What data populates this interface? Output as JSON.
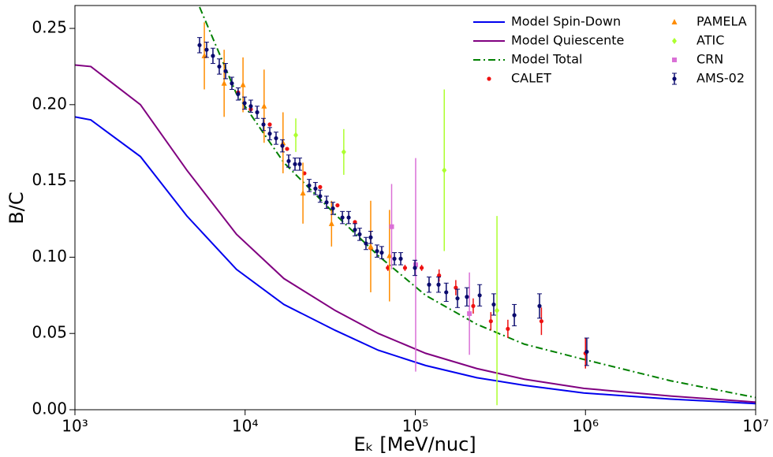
{
  "chart_data": {
    "type": "line",
    "xlabel": "Eₖ [MeV/nuc]",
    "ylabel": "B/C",
    "xscale": "log",
    "xlim": [
      1000,
      10000000
    ],
    "xticks": [
      {
        "value": 1000,
        "label": "10³"
      },
      {
        "value": 10000,
        "label": "10⁴"
      },
      {
        "value": 100000,
        "label": "10⁵"
      },
      {
        "value": 1000000,
        "label": "10⁶"
      },
      {
        "value": 10000000,
        "label": "10⁷"
      }
    ],
    "ylim": [
      0,
      0.265
    ],
    "yticks": [
      {
        "value": 0,
        "label": "0.00"
      },
      {
        "value": 0.05,
        "label": "0.05"
      },
      {
        "value": 0.1,
        "label": "0.10"
      },
      {
        "value": 0.15,
        "label": "0.15"
      },
      {
        "value": 0.2,
        "label": "0.20"
      },
      {
        "value": 0.25,
        "label": "0.25"
      }
    ],
    "grid": false,
    "legend": "upper right",
    "series": [
      {
        "name": "Model Spin-Down",
        "color": "#0000ee",
        "style": "solid",
        "x": [
          1000,
          1240,
          2425,
          4550,
          8900,
          16900,
          33900,
          60600,
          115000,
          230000,
          437000,
          977000,
          3160000,
          10000000
        ],
        "values": [
          0.192,
          0.19,
          0.166,
          0.127,
          0.092,
          0.069,
          0.052,
          0.039,
          0.029,
          0.021,
          0.016,
          0.011,
          0.007,
          0.004
        ]
      },
      {
        "name": "Model Quiescente",
        "color": "#800080",
        "style": "solid",
        "x": [
          1000,
          1240,
          2425,
          4550,
          8900,
          16900,
          33900,
          60600,
          115000,
          230000,
          437000,
          977000,
          3160000,
          10000000
        ],
        "values": [
          0.226,
          0.225,
          0.2,
          0.157,
          0.115,
          0.086,
          0.065,
          0.05,
          0.037,
          0.027,
          0.02,
          0.014,
          0.009,
          0.005
        ]
      },
      {
        "name": "Model Total",
        "color": "#008000",
        "style": "dashdot",
        "x": [
          5400,
          8900,
          16900,
          33900,
          60600,
          115000,
          230000,
          437000,
          977000,
          3160000,
          10000000
        ],
        "values": [
          0.264,
          0.207,
          0.162,
          0.128,
          0.101,
          0.075,
          0.056,
          0.043,
          0.033,
          0.019,
          0.008
        ]
      },
      {
        "name": "CALET",
        "color": "#ee1111",
        "style": "points",
        "marker": "circle",
        "x": [
          9100,
          10800,
          13960,
          17650,
          22300,
          27600,
          34900,
          44200,
          54700,
          69000,
          87000,
          109000,
          138000,
          173000,
          219000,
          278000,
          350000,
          551000,
          1000000
        ],
        "values": [
          0.208,
          0.197,
          0.187,
          0.171,
          0.155,
          0.146,
          0.134,
          0.123,
          0.106,
          0.093,
          0.093,
          0.093,
          0.088,
          0.08,
          0.068,
          0.058,
          0.053,
          0.058,
          0.037
        ],
        "errors": [
          0.001,
          0.001,
          0.001,
          0.001,
          0.001,
          0.001,
          0.001,
          0.001,
          0.002,
          0.002,
          0.002,
          0.002,
          0.004,
          0.005,
          0.005,
          0.006,
          0.006,
          0.009,
          0.01
        ]
      },
      {
        "name": "PAMELA",
        "color": "#ff8c00",
        "style": "points",
        "marker": "triangle",
        "x": [
          5760,
          7530,
          9720,
          12930,
          16700,
          21870,
          32200,
          54700,
          70500
        ],
        "values": [
          0.232,
          0.214,
          0.213,
          0.199,
          0.175,
          0.142,
          0.122,
          0.107,
          0.101
        ],
        "errors": [
          0.022,
          0.022,
          0.018,
          0.024,
          0.02,
          0.02,
          0.015,
          0.03,
          0.03
        ]
      },
      {
        "name": "ATIC",
        "color": "#adff2f",
        "style": "points",
        "marker": "diamond",
        "x": [
          19850,
          38000,
          148000,
          302000
        ],
        "values": [
          0.18,
          0.169,
          0.157,
          0.065
        ],
        "errors": [
          0.011,
          0.015,
          0.053,
          0.062
        ]
      },
      {
        "name": "CRN",
        "color": "#da70d6",
        "style": "points",
        "marker": "square",
        "x": [
          72600,
          100500,
          208000
        ],
        "values": [
          0.12,
          0.095,
          0.063
        ],
        "errors": [
          0.028,
          0.07,
          0.027
        ]
      },
      {
        "name": "AMS-02",
        "color": "#0a0a6e",
        "style": "points",
        "marker": "circle",
        "caps": true,
        "x": [
          5400,
          5940,
          6470,
          7050,
          7680,
          8360,
          9100,
          9930,
          10800,
          11770,
          12820,
          13960,
          15200,
          16560,
          18030,
          19640,
          20940,
          23800,
          25900,
          27600,
          30100,
          32800,
          37300,
          40600,
          44200,
          47100,
          51300,
          54700,
          59600,
          63500,
          75400,
          82100,
          99500,
          120500,
          137000,
          152000,
          177000,
          201000,
          239000,
          289000,
          382000,
          537000,
          1018000
        ],
        "values": [
          0.239,
          0.236,
          0.232,
          0.225,
          0.222,
          0.214,
          0.207,
          0.201,
          0.199,
          0.195,
          0.187,
          0.181,
          0.178,
          0.173,
          0.163,
          0.161,
          0.161,
          0.147,
          0.145,
          0.14,
          0.136,
          0.132,
          0.126,
          0.126,
          0.118,
          0.115,
          0.109,
          0.113,
          0.104,
          0.103,
          0.099,
          0.099,
          0.093,
          0.082,
          0.082,
          0.077,
          0.073,
          0.074,
          0.075,
          0.069,
          0.062,
          0.068,
          0.038
        ],
        "errors": [
          0.005,
          0.005,
          0.005,
          0.005,
          0.005,
          0.004,
          0.004,
          0.004,
          0.004,
          0.004,
          0.004,
          0.004,
          0.004,
          0.004,
          0.004,
          0.004,
          0.004,
          0.004,
          0.004,
          0.004,
          0.004,
          0.004,
          0.004,
          0.004,
          0.004,
          0.004,
          0.004,
          0.004,
          0.004,
          0.004,
          0.004,
          0.004,
          0.005,
          0.005,
          0.005,
          0.006,
          0.006,
          0.006,
          0.007,
          0.007,
          0.007,
          0.008,
          0.009
        ]
      }
    ]
  }
}
